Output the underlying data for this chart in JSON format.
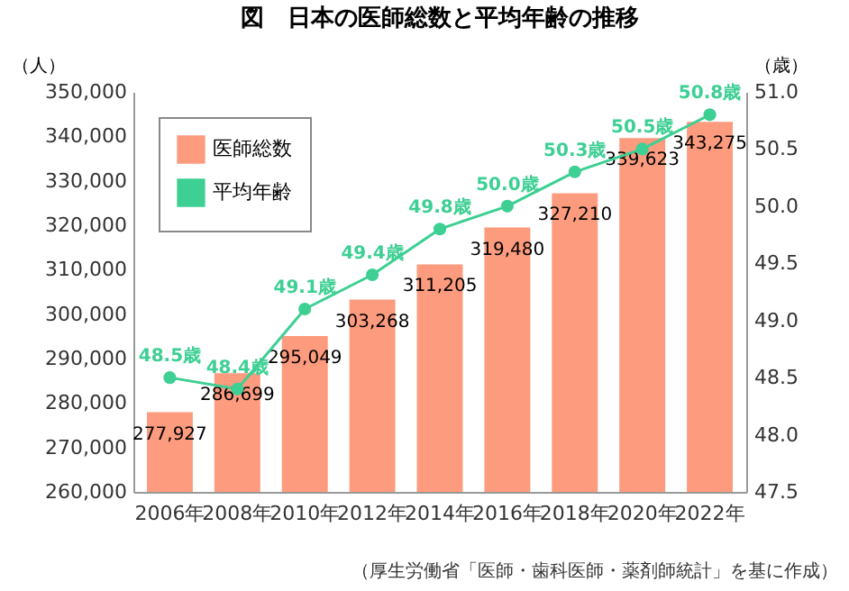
{
  "chart_data": {
    "type": "bar",
    "title": "図　日本の医師総数と平均年齢の推移",
    "ylabel": "（人）",
    "y2label": "（歳）",
    "categories": [
      "2006年",
      "2008年",
      "2010年",
      "2012年",
      "2014年",
      "2016年",
      "2018年",
      "2020年",
      "2022年"
    ],
    "series": [
      {
        "name": "医師総数",
        "color": "#fc9b7e",
        "values": [
          277927,
          286699,
          295049,
          303268,
          311205,
          319480,
          327210,
          339623,
          343275
        ],
        "value_labels": [
          "277,927",
          "286,699",
          "295,049",
          "303,268",
          "311,205",
          "319,480",
          "327,210",
          "339,623",
          "343,275"
        ]
      },
      {
        "name": "平均年齢",
        "type": "line",
        "axis": "y2",
        "color": "#3dcf93",
        "values": [
          48.5,
          48.4,
          49.1,
          49.4,
          49.8,
          50.0,
          50.3,
          50.5,
          50.8
        ],
        "value_labels": [
          "48.5歳",
          "48.4歳",
          "49.1歳",
          "49.4歳",
          "49.8歳",
          "50.0歳",
          "50.3歳",
          "50.5歳",
          "50.8歳"
        ]
      }
    ],
    "ylim": [
      260000,
      350000
    ],
    "yticks": [
      {
        "value": 260000,
        "label": "260,000"
      },
      {
        "value": 270000,
        "label": "270,000"
      },
      {
        "value": 280000,
        "label": "280,000"
      },
      {
        "value": 290000,
        "label": "290,000"
      },
      {
        "value": 300000,
        "label": "300,000"
      },
      {
        "value": 310000,
        "label": "310,000"
      },
      {
        "value": 320000,
        "label": "320,000"
      },
      {
        "value": 330000,
        "label": "330,000"
      },
      {
        "value": 340000,
        "label": "340,000"
      },
      {
        "value": 350000,
        "label": "350,000"
      }
    ],
    "y2lim": [
      47.5,
      51.0
    ],
    "y2ticks": [
      47.5,
      {
        "value": 48,
        "label": "48.0"
      },
      48.5,
      {
        "value": 49,
        "label": "49.0"
      },
      49.5,
      {
        "value": 50,
        "label": "50.0"
      },
      50.5,
      {
        "value": 51,
        "label": "51.0"
      }
    ],
    "marker": "circle",
    "legend": "top left",
    "grid": false,
    "annotations": [
      "（厚生労働省「医師・歯科医師・薬剤師統計」を基に作成）"
    ]
  }
}
